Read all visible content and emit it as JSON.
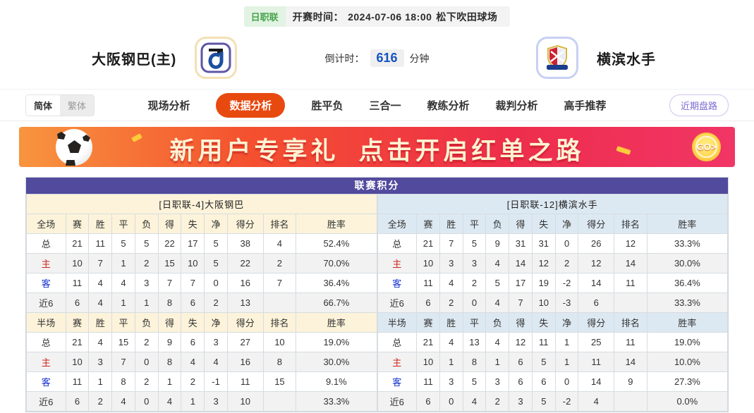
{
  "meta": {
    "league_badge": "日职联",
    "kickoff_label": "开赛时间：",
    "kickoff_time": "2024-07-06 18:00",
    "venue": "松下吹田球场"
  },
  "match": {
    "home_name": "大阪钢巴(主)",
    "away_name": "横滨水手",
    "home_logo_icon": "gamba-osaka-crest",
    "away_logo_icon": "yokohama-marinos-crest",
    "countdown_label": "倒计时：",
    "countdown_value": "616",
    "countdown_unit": "分钟"
  },
  "nav": {
    "lang_simplified": "简体",
    "lang_traditional": "繁体",
    "tabs": [
      {
        "label": "现场分析",
        "active": false
      },
      {
        "label": "数据分析",
        "active": true
      },
      {
        "label": "胜平负",
        "active": false
      },
      {
        "label": "三合一",
        "active": false
      },
      {
        "label": "教练分析",
        "active": false
      },
      {
        "label": "裁判分析",
        "active": false
      },
      {
        "label": "高手推荐",
        "active": false
      }
    ],
    "recent_trend_label": "近期盘路"
  },
  "banner": {
    "text_part1": "新用户专享礼",
    "text_part2": "点击开启红单之路",
    "go_label": "GO>",
    "ball_icon": "soccer-ball"
  },
  "table": {
    "title": "联赛积分",
    "home_header": "[日职联-4]大阪钢巴",
    "away_header": "[日职联-12]横滨水手",
    "full_cols": [
      "全场",
      "赛",
      "胜",
      "平",
      "负",
      "得",
      "失",
      "净",
      "得分",
      "排名",
      "胜率"
    ],
    "half_cols": [
      "半场",
      "赛",
      "胜",
      "平",
      "负",
      "得",
      "失",
      "净",
      "得分",
      "排名",
      "胜率"
    ],
    "home_full": [
      [
        "总",
        "21",
        "11",
        "5",
        "5",
        "22",
        "17",
        "5",
        "38",
        "4",
        "52.4%"
      ],
      [
        "主",
        "10",
        "7",
        "1",
        "2",
        "15",
        "10",
        "5",
        "22",
        "2",
        "70.0%"
      ],
      [
        "客",
        "11",
        "4",
        "4",
        "3",
        "7",
        "7",
        "0",
        "16",
        "7",
        "36.4%"
      ],
      [
        "近6",
        "6",
        "4",
        "1",
        "1",
        "8",
        "6",
        "2",
        "13",
        "",
        "66.7%"
      ]
    ],
    "home_half": [
      [
        "总",
        "21",
        "4",
        "15",
        "2",
        "9",
        "6",
        "3",
        "27",
        "10",
        "19.0%"
      ],
      [
        "主",
        "10",
        "3",
        "7",
        "0",
        "8",
        "4",
        "4",
        "16",
        "8",
        "30.0%"
      ],
      [
        "客",
        "11",
        "1",
        "8",
        "2",
        "1",
        "2",
        "-1",
        "11",
        "15",
        "9.1%"
      ],
      [
        "近6",
        "6",
        "2",
        "4",
        "0",
        "4",
        "1",
        "3",
        "10",
        "",
        "33.3%"
      ]
    ],
    "away_full": [
      [
        "总",
        "21",
        "7",
        "5",
        "9",
        "31",
        "31",
        "0",
        "26",
        "12",
        "33.3%"
      ],
      [
        "主",
        "10",
        "3",
        "3",
        "4",
        "14",
        "12",
        "2",
        "12",
        "14",
        "30.0%"
      ],
      [
        "客",
        "11",
        "4",
        "2",
        "5",
        "17",
        "19",
        "-2",
        "14",
        "11",
        "36.4%"
      ],
      [
        "近6",
        "6",
        "2",
        "0",
        "4",
        "7",
        "10",
        "-3",
        "6",
        "",
        "33.3%"
      ]
    ],
    "away_half": [
      [
        "总",
        "21",
        "4",
        "13",
        "4",
        "12",
        "11",
        "1",
        "25",
        "11",
        "19.0%"
      ],
      [
        "主",
        "10",
        "1",
        "8",
        "1",
        "6",
        "5",
        "1",
        "11",
        "14",
        "10.0%"
      ],
      [
        "客",
        "11",
        "3",
        "5",
        "3",
        "6",
        "6",
        "0",
        "14",
        "9",
        "27.3%"
      ],
      [
        "近6",
        "6",
        "0",
        "4",
        "2",
        "3",
        "5",
        "-2",
        "4",
        "",
        "0.0%"
      ]
    ]
  },
  "colors": {
    "accent_orange": "#e8490f",
    "title_purple": "#524a9d",
    "home_section_bg": "#fcf3da",
    "away_section_bg": "#dde9f2",
    "badge_green": "#47a44c",
    "countdown_blue": "#1553c0",
    "trend_purple": "#7b6bd0",
    "home_row_red": "#d0241b",
    "away_row_blue": "#1430cc"
  }
}
